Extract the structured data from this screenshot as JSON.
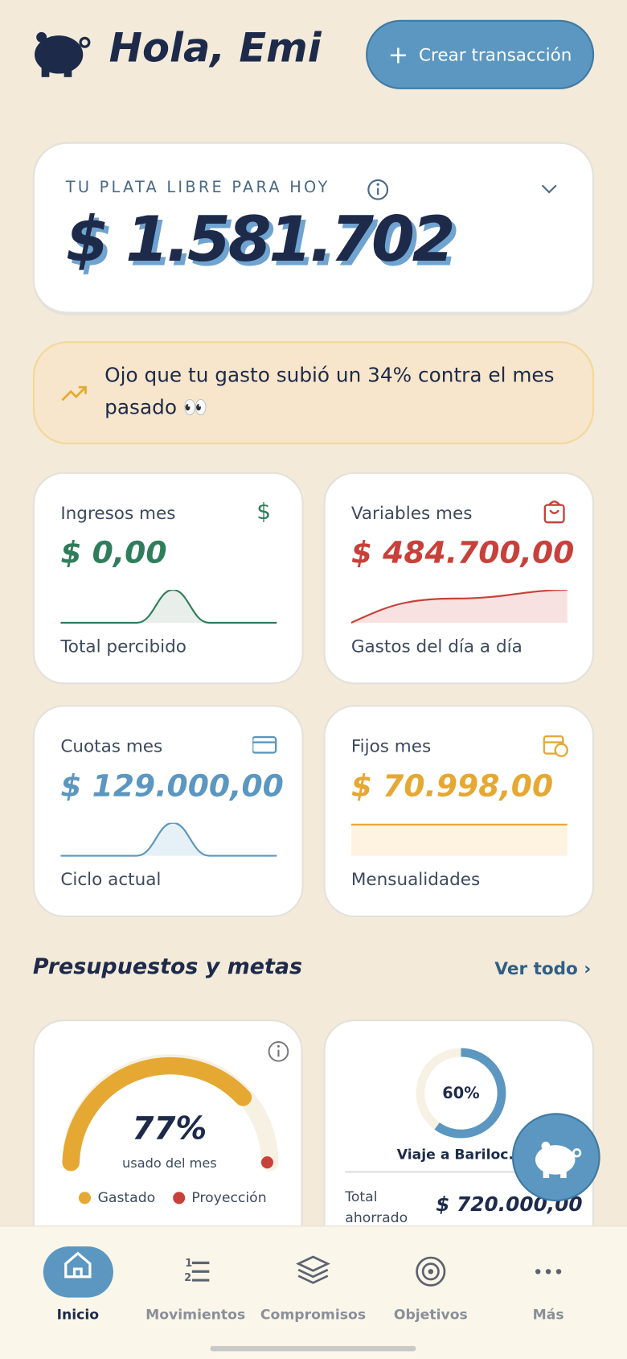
{
  "header": {
    "greeting": "Hola, Emi",
    "create_button": "Crear transacción"
  },
  "balance": {
    "label": "TU PLATA LIBRE PARA HOY",
    "amount": "$ 1.581.702"
  },
  "alert": {
    "text": "Ojo que tu gasto subió un 34% contra el mes pasado 👀"
  },
  "cards": [
    {
      "title": "Ingresos mes",
      "amount": "$ 0,00",
      "caption": "Total percibido"
    },
    {
      "title": "Variables mes",
      "amount": "$ 484.700,00",
      "caption": "Gastos del día a día"
    },
    {
      "title": "Cuotas mes",
      "amount": "$ 129.000,00",
      "caption": "Ciclo actual"
    },
    {
      "title": "Fijos mes",
      "amount": "$ 70.998,00",
      "caption": "Mensualidades"
    }
  ],
  "budgets": {
    "title": "Presupuestos y metas",
    "see_all": "Ver todo",
    "gauge": {
      "percent": "77%",
      "caption": "usado del mes",
      "legend": [
        "Gastado",
        "Proyección"
      ]
    },
    "goal": {
      "percent": "60%",
      "name": "Viaje a Bariloc...",
      "total_label": "Total ahorrado",
      "total": "$ 720.000,00"
    }
  },
  "nav": [
    "Inicio",
    "Movimientos",
    "Compromisos",
    "Objetivos",
    "Más"
  ]
}
